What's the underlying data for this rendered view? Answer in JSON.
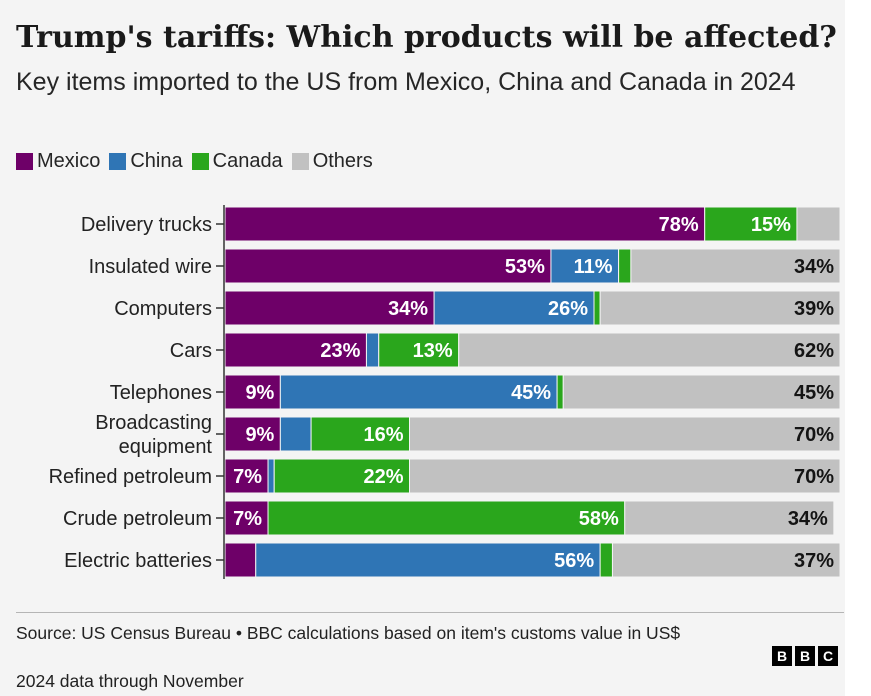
{
  "title": "Trump's tariffs: Which products will be affected?",
  "subtitle": "Key items imported to the US from Mexico, China and Canada in 2024",
  "colors": {
    "Mexico": "#6e0068",
    "China": "#2f75b5",
    "Canada": "#2aa61c",
    "Others": "#c1c1c1",
    "label_on_dark": "#ffffff",
    "label_on_light": "#141414"
  },
  "legend": [
    {
      "name": "Mexico"
    },
    {
      "name": "China"
    },
    {
      "name": "Canada"
    },
    {
      "name": "Others"
    }
  ],
  "chart_data": {
    "type": "bar",
    "orientation": "horizontal",
    "stacked": true,
    "unit": "%",
    "xlim": [
      0,
      100
    ],
    "grid": false,
    "legend_position": "top-left",
    "categories": [
      "Delivery trucks",
      "Insulated wire",
      "Computers",
      "Cars",
      "Telephones",
      "Broadcasting equipment",
      "Refined petroleum",
      "Crude petroleum",
      "Electric batteries"
    ],
    "series": [
      {
        "name": "Mexico",
        "values": [
          78,
          53,
          34,
          23,
          9,
          9,
          7,
          7,
          5
        ]
      },
      {
        "name": "China",
        "values": [
          0,
          11,
          26,
          2,
          45,
          5,
          1,
          0,
          56
        ]
      },
      {
        "name": "Canada",
        "values": [
          15,
          2,
          1,
          13,
          1,
          16,
          22,
          58,
          2
        ]
      },
      {
        "name": "Others",
        "values": [
          7,
          34,
          39,
          62,
          45,
          70,
          70,
          34,
          37
        ]
      }
    ],
    "data_labels": [
      [
        "78%",
        "",
        "15%",
        ""
      ],
      [
        "53%",
        "11%",
        "",
        "34%"
      ],
      [
        "34%",
        "26%",
        "",
        "39%"
      ],
      [
        "23%",
        "",
        "13%",
        "62%"
      ],
      [
        "9%",
        "45%",
        "",
        "45%"
      ],
      [
        "9%",
        "",
        "16%",
        "70%"
      ],
      [
        "7%",
        "",
        "22%",
        "70%"
      ],
      [
        "7%",
        "",
        "58%",
        "34%"
      ],
      [
        "",
        "56%",
        "",
        "37%"
      ]
    ]
  },
  "footer": {
    "source": "Source: US Census Bureau • BBC calculations based on item's customs value in US$",
    "note": "2024 data through November",
    "logo_letters": [
      "B",
      "B",
      "C"
    ]
  }
}
